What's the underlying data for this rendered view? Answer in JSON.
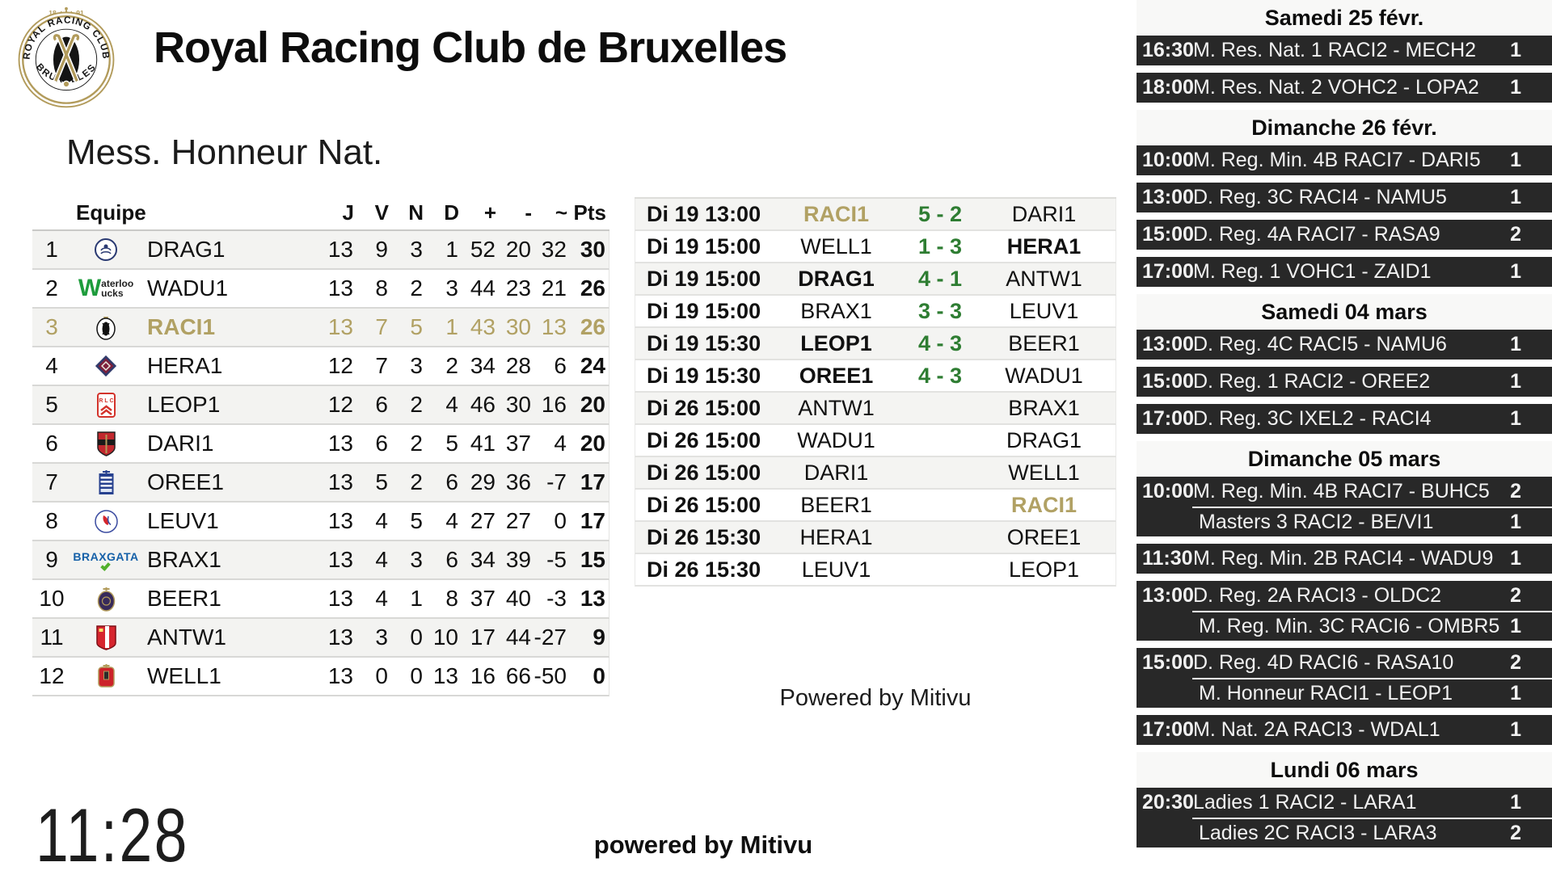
{
  "colors": {
    "gold": "#b1a164",
    "score_green": "#2e7d32",
    "sidebar_dark": "#282828"
  },
  "header": {
    "title": "Royal Racing Club de Bruxelles",
    "logo": {
      "arc_top": "ROYAL RACING CLUB",
      "arc_bottom": "BRUXELLES",
      "year_left": "18",
      "year_right": "91"
    }
  },
  "standings": {
    "title": "Mess. Honneur Nat.",
    "columns": [
      "Equipe",
      "J",
      "V",
      "N",
      "D",
      "+",
      "-",
      "~",
      "Pts"
    ],
    "rows": [
      {
        "rank": 1,
        "team": "DRAG1",
        "logo": "dragons",
        "j": 13,
        "v": 9,
        "n": 3,
        "d": 1,
        "gf": 52,
        "ga": 20,
        "gd": 32,
        "pts": 30,
        "highlight": false
      },
      {
        "rank": 2,
        "team": "WADU1",
        "logo": "waterloo",
        "j": 13,
        "v": 8,
        "n": 2,
        "d": 3,
        "gf": 44,
        "ga": 23,
        "gd": 21,
        "pts": 26,
        "highlight": false
      },
      {
        "rank": 3,
        "team": "RACI1",
        "logo": "racing",
        "j": 13,
        "v": 7,
        "n": 5,
        "d": 1,
        "gf": 43,
        "ga": 30,
        "gd": 13,
        "pts": 26,
        "highlight": true
      },
      {
        "rank": 4,
        "team": "HERA1",
        "logo": "herakles",
        "j": 12,
        "v": 7,
        "n": 3,
        "d": 2,
        "gf": 34,
        "ga": 28,
        "gd": 6,
        "pts": 24,
        "highlight": false
      },
      {
        "rank": 5,
        "team": "LEOP1",
        "logo": "leopold",
        "j": 12,
        "v": 6,
        "n": 2,
        "d": 4,
        "gf": 46,
        "ga": 30,
        "gd": 16,
        "pts": 20,
        "highlight": false
      },
      {
        "rank": 6,
        "team": "DARI1",
        "logo": "daring",
        "j": 13,
        "v": 6,
        "n": 2,
        "d": 5,
        "gf": 41,
        "ga": 37,
        "gd": 4,
        "pts": 20,
        "highlight": false
      },
      {
        "rank": 7,
        "team": "OREE1",
        "logo": "oree",
        "j": 13,
        "v": 5,
        "n": 2,
        "d": 6,
        "gf": 29,
        "ga": 36,
        "gd": -7,
        "pts": 17,
        "highlight": false
      },
      {
        "rank": 8,
        "team": "LEUV1",
        "logo": "leuven",
        "j": 13,
        "v": 4,
        "n": 5,
        "d": 4,
        "gf": 27,
        "ga": 27,
        "gd": 0,
        "pts": 17,
        "highlight": false
      },
      {
        "rank": 9,
        "team": "BRAX1",
        "logo": "braxgata",
        "j": 13,
        "v": 4,
        "n": 3,
        "d": 6,
        "gf": 34,
        "ga": 39,
        "gd": -5,
        "pts": 15,
        "highlight": false
      },
      {
        "rank": 10,
        "team": "BEER1",
        "logo": "beerschot",
        "j": 13,
        "v": 4,
        "n": 1,
        "d": 8,
        "gf": 37,
        "ga": 40,
        "gd": -3,
        "pts": 13,
        "highlight": false
      },
      {
        "rank": 11,
        "team": "ANTW1",
        "logo": "antwerp",
        "j": 13,
        "v": 3,
        "n": 0,
        "d": 10,
        "gf": 17,
        "ga": 44,
        "gd": -27,
        "pts": 9,
        "highlight": false
      },
      {
        "rank": 12,
        "team": "WELL1",
        "logo": "wellington",
        "j": 13,
        "v": 0,
        "n": 0,
        "d": 13,
        "gf": 16,
        "ga": 66,
        "gd": -50,
        "pts": 0,
        "highlight": false
      }
    ]
  },
  "fixtures": {
    "powered_by": "Powered by Mitivu",
    "rows": [
      {
        "datetime": "Di 19 13:00",
        "home": "RACI1",
        "home_style": "gold",
        "score": "5 - 2",
        "away": "DARI1",
        "away_style": ""
      },
      {
        "datetime": "Di 19 15:00",
        "home": "WELL1",
        "home_style": "",
        "score": "1 - 3",
        "away": "HERA1",
        "away_style": "bold"
      },
      {
        "datetime": "Di 19 15:00",
        "home": "DRAG1",
        "home_style": "bold",
        "score": "4 - 1",
        "away": "ANTW1",
        "away_style": ""
      },
      {
        "datetime": "Di 19 15:00",
        "home": "BRAX1",
        "home_style": "",
        "score": "3 - 3",
        "away": "LEUV1",
        "away_style": ""
      },
      {
        "datetime": "Di 19 15:30",
        "home": "LEOP1",
        "home_style": "bold",
        "score": "4 - 3",
        "away": "BEER1",
        "away_style": ""
      },
      {
        "datetime": "Di 19 15:30",
        "home": "OREE1",
        "home_style": "bold",
        "score": "4 - 3",
        "away": "WADU1",
        "away_style": ""
      },
      {
        "datetime": "Di 26 15:00",
        "home": "ANTW1",
        "home_style": "",
        "score": "",
        "away": "BRAX1",
        "away_style": ""
      },
      {
        "datetime": "Di 26 15:00",
        "home": "WADU1",
        "home_style": "",
        "score": "",
        "away": "DRAG1",
        "away_style": ""
      },
      {
        "datetime": "Di 26 15:00",
        "home": "DARI1",
        "home_style": "",
        "score": "",
        "away": "WELL1",
        "away_style": ""
      },
      {
        "datetime": "Di 26 15:00",
        "home": "BEER1",
        "home_style": "",
        "score": "",
        "away": "RACI1",
        "away_style": "gold"
      },
      {
        "datetime": "Di 26 15:30",
        "home": "HERA1",
        "home_style": "",
        "score": "",
        "away": "OREE1",
        "away_style": ""
      },
      {
        "datetime": "Di 26 15:30",
        "home": "LEUV1",
        "home_style": "",
        "score": "",
        "away": "LEOP1",
        "away_style": ""
      }
    ]
  },
  "sidebar": {
    "sections": [
      {
        "date": "Samedi 25 févr.",
        "blocks": [
          {
            "time": "16:30",
            "entries": [
              {
                "label": "M. Res. Nat. 1 RACI2 - MECH2",
                "count": "1"
              }
            ]
          },
          {
            "time": "18:00",
            "entries": [
              {
                "label": "M. Res. Nat. 2 VOHC2 - LOPA2",
                "count": "1"
              }
            ]
          }
        ]
      },
      {
        "date": "Dimanche 26 févr.",
        "blocks": [
          {
            "time": "10:00",
            "entries": [
              {
                "label": "M. Reg. Min. 4B RACI7 - DARI5",
                "count": "1"
              }
            ]
          },
          {
            "time": "13:00",
            "entries": [
              {
                "label": "D. Reg. 3C RACI4 - NAMU5",
                "count": "1"
              }
            ]
          },
          {
            "time": "15:00",
            "entries": [
              {
                "label": "D. Reg. 4A RACI7 - RASA9",
                "count": "2"
              }
            ]
          },
          {
            "time": "17:00",
            "entries": [
              {
                "label": "M. Reg. 1 VOHC1 - ZAID1",
                "count": "1"
              }
            ]
          }
        ]
      },
      {
        "date": "Samedi 04 mars",
        "blocks": [
          {
            "time": "13:00",
            "entries": [
              {
                "label": "D. Reg. 4C RACI5 - NAMU6",
                "count": "1"
              }
            ]
          },
          {
            "time": "15:00",
            "entries": [
              {
                "label": "D. Reg. 1 RACI2 - OREE2",
                "count": "1"
              }
            ]
          },
          {
            "time": "17:00",
            "entries": [
              {
                "label": "D. Reg. 3C IXEL2 - RACI4",
                "count": "1"
              }
            ]
          }
        ]
      },
      {
        "date": "Dimanche 05 mars",
        "blocks": [
          {
            "time": "10:00",
            "entries": [
              {
                "label": "M. Reg. Min. 4B RACI7 - BUHC5",
                "count": "2"
              },
              {
                "label": "Masters 3 RACI2 - BE/VI1",
                "count": "1"
              }
            ]
          },
          {
            "time": "11:30",
            "entries": [
              {
                "label": "M. Reg. Min. 2B RACI4 - WADU9",
                "count": "1"
              }
            ]
          },
          {
            "time": "13:00",
            "entries": [
              {
                "label": "D. Reg. 2A RACI3 - OLDC2",
                "count": "2"
              },
              {
                "label": "M. Reg. Min. 3C RACI6 - OMBR5",
                "count": "1"
              }
            ]
          },
          {
            "time": "15:00",
            "entries": [
              {
                "label": "D. Reg. 4D RACI6 - RASA10",
                "count": "2"
              },
              {
                "label": "M. Honneur RACI1 - LEOP1",
                "count": "1"
              }
            ]
          },
          {
            "time": "17:00",
            "entries": [
              {
                "label": "M. Nat. 2A RACI3 - WDAL1",
                "count": "1"
              }
            ]
          }
        ]
      },
      {
        "date": "Lundi 06 mars",
        "blocks": [
          {
            "time": "20:30",
            "entries": [
              {
                "label": "Ladies 1 RACI2 - LARA1",
                "count": "1"
              },
              {
                "label": "Ladies 2C RACI3 - LARA3",
                "count": "2"
              }
            ]
          }
        ]
      }
    ]
  },
  "footer": {
    "clock": "11:28",
    "powered_by": "powered by Mitivu"
  }
}
